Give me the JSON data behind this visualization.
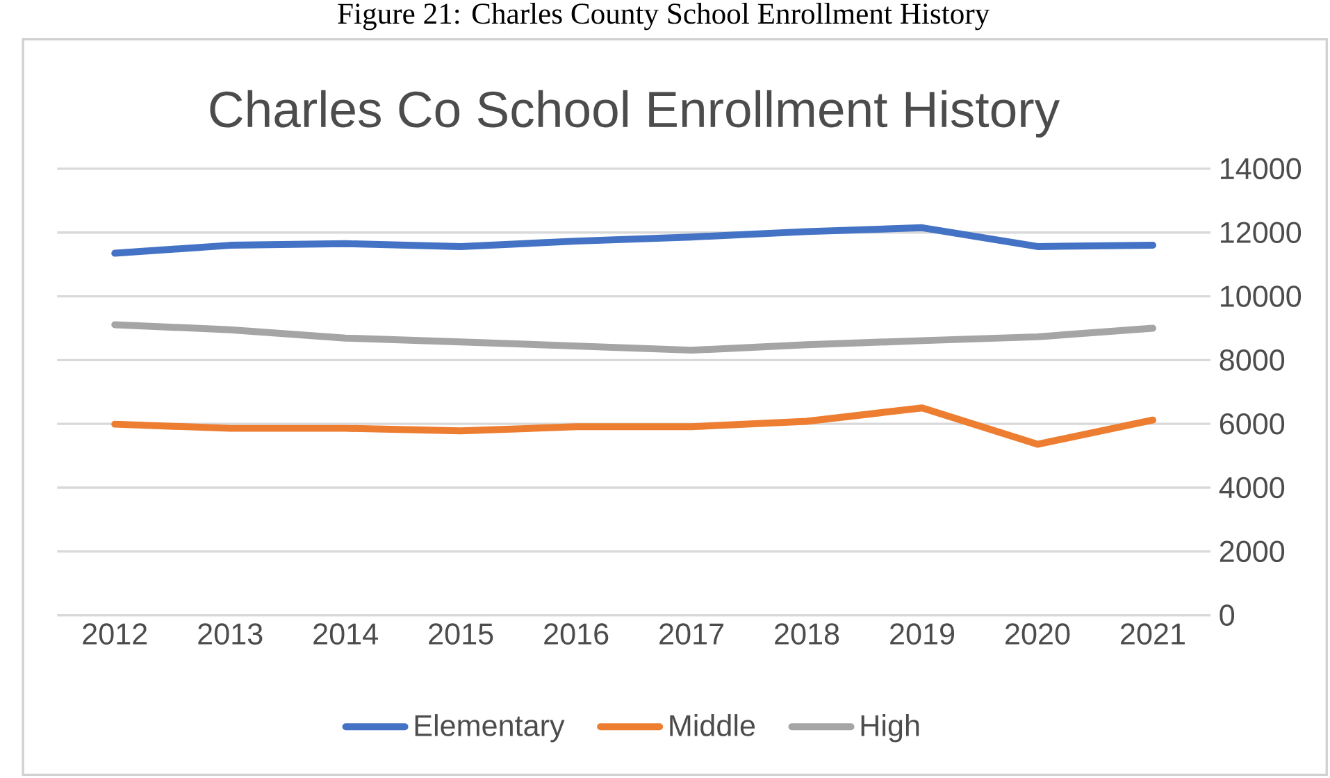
{
  "chart_data": {
    "type": "line",
    "title": "Charles Co School Enrollment History",
    "annotations": [
      "Figure 21: Charles County School Enrollment History"
    ],
    "categories": [
      "2012",
      "2013",
      "2014",
      "2015",
      "2016",
      "2017",
      "2018",
      "2019",
      "2020",
      "2021"
    ],
    "series": [
      {
        "name": "Elementary",
        "color": "#4472c4",
        "values": [
          11350,
          11600,
          11650,
          11560,
          11730,
          11860,
          12030,
          12150,
          11560,
          11600
        ]
      },
      {
        "name": "Middle",
        "color": "#ed7d31",
        "values": [
          5990,
          5860,
          5860,
          5780,
          5910,
          5910,
          6080,
          6500,
          5360,
          6120
        ]
      },
      {
        "name": "High",
        "color": "#a5a5a5",
        "values": [
          9110,
          8950,
          8690,
          8570,
          8440,
          8310,
          8480,
          8610,
          8730,
          9000
        ]
      }
    ],
    "ylim": [
      0,
      14000
    ],
    "yticks": [
      0,
      2000,
      4000,
      6000,
      8000,
      10000,
      12000,
      14000
    ],
    "grid": "y",
    "legend": "bottom",
    "marker": "none",
    "line_style": "solid"
  }
}
